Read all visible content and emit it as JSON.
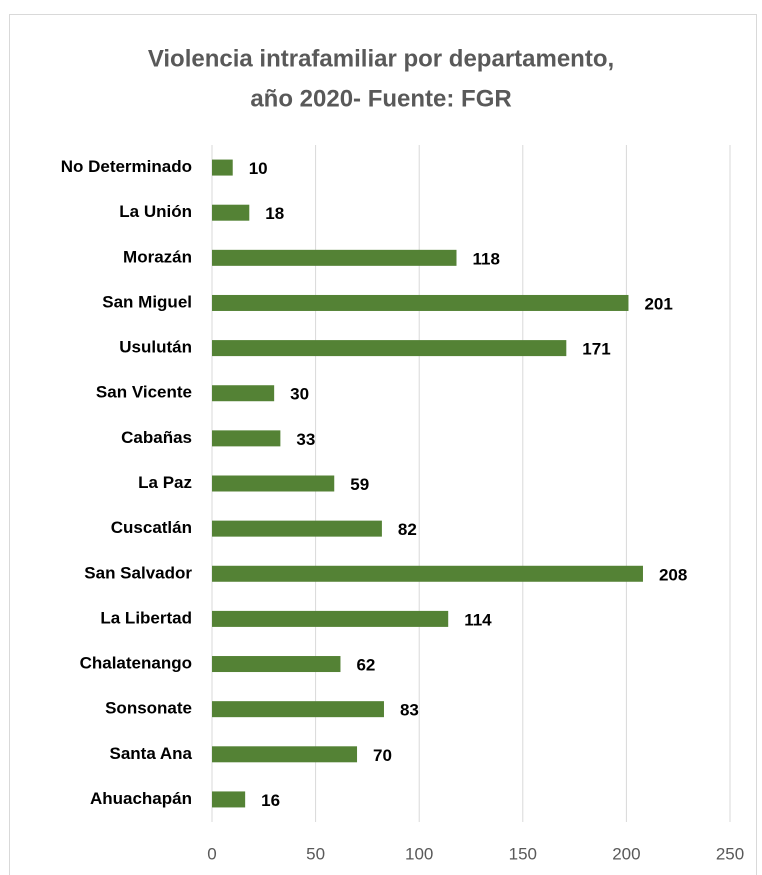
{
  "chart_data": {
    "type": "bar",
    "orientation": "horizontal",
    "title": [
      "Violencia intrafamiliar por departamento,",
      "año 2020- Fuente: FGR"
    ],
    "categories": [
      "No Determinado",
      "La Unión",
      "Morazán",
      "San Miguel",
      "Usulután",
      "San Vicente",
      "Cabañas",
      "La Paz",
      "Cuscatlán",
      "San Salvador",
      "La Libertad",
      "Chalatenango",
      "Sonsonate",
      "Santa Ana",
      "Ahuachapán"
    ],
    "values": [
      10,
      18,
      118,
      201,
      171,
      30,
      33,
      59,
      82,
      208,
      114,
      62,
      83,
      70,
      16
    ],
    "color": "#548235",
    "xlim": [
      0,
      250
    ],
    "xticks": [
      0,
      50,
      100,
      150,
      200,
      250
    ],
    "grid": true
  }
}
